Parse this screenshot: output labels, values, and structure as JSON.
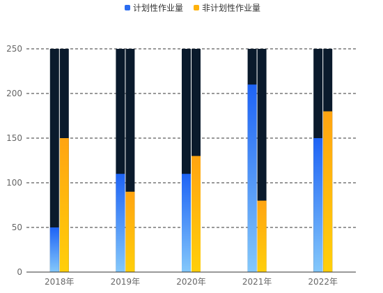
{
  "chart_data": {
    "type": "bar",
    "categories": [
      "2018年",
      "2019年",
      "2020年",
      "2021年",
      "2022年"
    ],
    "series": [
      {
        "name": "计划性作业量",
        "values": [
          50,
          110,
          110,
          210,
          150
        ],
        "color_top": "#1e63f5",
        "color_bottom": "#84c8fb",
        "legend_color": "#2b6cf0"
      },
      {
        "name": "非计划性作业量",
        "values": [
          150,
          90,
          130,
          80,
          180
        ],
        "color_top": "#ffa411",
        "color_bottom": "#ffcf0a",
        "legend_color": "#ffb20c"
      }
    ],
    "ylim": [
      0,
      250
    ],
    "yticks": [
      0,
      50,
      100,
      150,
      200,
      250
    ],
    "grid": true,
    "grid_style": "dashed",
    "legend_position": "top-center",
    "background_bar_color": "#0a1a2c",
    "background_bar_value": 250,
    "xlabel": "",
    "ylabel": "",
    "title": ""
  }
}
